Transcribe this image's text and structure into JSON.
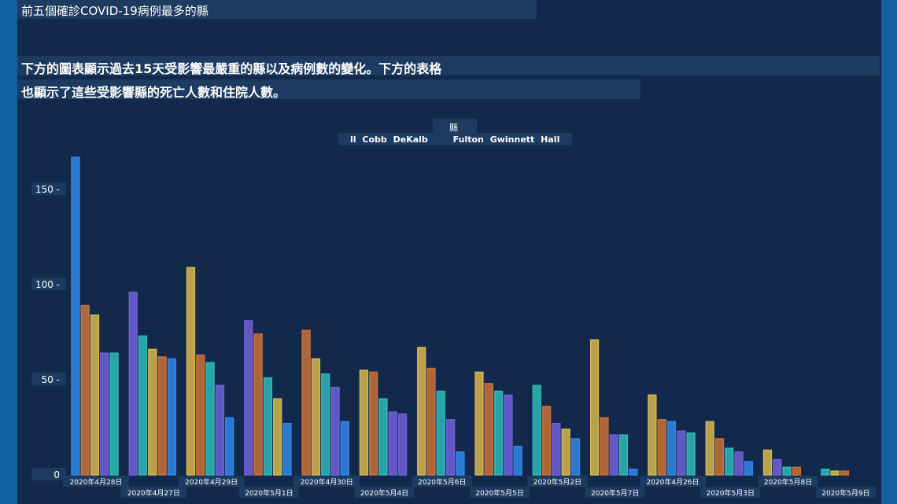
{
  "header": {
    "title": "前五個確診COVID-19病例最多的縣",
    "description_line1": "下方的圖表顯示過去15天受影響最嚴重的縣以及病例數的變化。下方的表格",
    "description_line2": "也顯示了這些受影響縣的死亡人數和住院人數。"
  },
  "legend": {
    "title": "縣",
    "items": [
      "ll",
      "Cobb",
      "DeKalb",
      "Fulton",
      "Gwinnett",
      "Hall"
    ]
  },
  "colors": {
    "bar_palette": [
      "#2f86e8",
      "#c9703a",
      "#d6b64e",
      "#7060d8",
      "#2fb8b8"
    ],
    "background": "#13294b"
  },
  "chart_data": {
    "type": "bar",
    "title": "",
    "xlabel": "",
    "ylabel": "",
    "ylim": [
      0,
      170
    ],
    "yticks": [
      0,
      50,
      100,
      150
    ],
    "ytick_labels": [
      "0",
      "50",
      "100",
      "150"
    ],
    "grid": false,
    "legend_position": "top-center",
    "categories": [
      "2020年4月28日",
      "2020年4月27日",
      "2020年4月29日",
      "2020年5月1日",
      "2020年4月30日",
      "2020年5月4日",
      "2020年5月6日",
      "2020年5月5日",
      "2020年5月2日",
      "2020年5月7日",
      "2020年4月26日",
      "2020年5月3日",
      "2020年5月8日",
      "2020年5月9日"
    ],
    "groups": [
      {
        "bars": [
          {
            "v": 167,
            "c": 0
          },
          {
            "v": 89,
            "c": 1
          },
          {
            "v": 84,
            "c": 2
          },
          {
            "v": 64,
            "c": 3
          },
          {
            "v": 64,
            "c": 4
          }
        ]
      },
      {
        "bars": [
          {
            "v": 96,
            "c": 3
          },
          {
            "v": 73,
            "c": 4
          },
          {
            "v": 66,
            "c": 2
          },
          {
            "v": 62,
            "c": 1
          },
          {
            "v": 61,
            "c": 0
          }
        ]
      },
      {
        "bars": [
          {
            "v": 109,
            "c": 2
          },
          {
            "v": 63,
            "c": 1
          },
          {
            "v": 59,
            "c": 4
          },
          {
            "v": 47,
            "c": 3
          },
          {
            "v": 30,
            "c": 0
          }
        ]
      },
      {
        "bars": [
          {
            "v": 81,
            "c": 3
          },
          {
            "v": 74,
            "c": 1
          },
          {
            "v": 51,
            "c": 4
          },
          {
            "v": 40,
            "c": 2
          },
          {
            "v": 27,
            "c": 0
          }
        ]
      },
      {
        "bars": [
          {
            "v": 76,
            "c": 1
          },
          {
            "v": 61,
            "c": 2
          },
          {
            "v": 53,
            "c": 4
          },
          {
            "v": 46,
            "c": 3
          },
          {
            "v": 28,
            "c": 0
          }
        ]
      },
      {
        "bars": [
          {
            "v": 55,
            "c": 2
          },
          {
            "v": 54,
            "c": 1
          },
          {
            "v": 40,
            "c": 4
          },
          {
            "v": 33,
            "c": 3
          },
          {
            "v": 32,
            "c": 3
          }
        ]
      },
      {
        "bars": [
          {
            "v": 67,
            "c": 2
          },
          {
            "v": 56,
            "c": 1
          },
          {
            "v": 44,
            "c": 4
          },
          {
            "v": 29,
            "c": 3
          },
          {
            "v": 12,
            "c": 0
          }
        ]
      },
      {
        "bars": [
          {
            "v": 54,
            "c": 2
          },
          {
            "v": 48,
            "c": 1
          },
          {
            "v": 44,
            "c": 4
          },
          {
            "v": 42,
            "c": 3
          },
          {
            "v": 15,
            "c": 0
          }
        ]
      },
      {
        "bars": [
          {
            "v": 47,
            "c": 4
          },
          {
            "v": 36,
            "c": 1
          },
          {
            "v": 27,
            "c": 3
          },
          {
            "v": 24,
            "c": 2
          },
          {
            "v": 19,
            "c": 0
          }
        ]
      },
      {
        "bars": [
          {
            "v": 71,
            "c": 2
          },
          {
            "v": 30,
            "c": 1
          },
          {
            "v": 21,
            "c": 3
          },
          {
            "v": 21,
            "c": 4
          },
          {
            "v": 3,
            "c": 0
          }
        ]
      },
      {
        "bars": [
          {
            "v": 42,
            "c": 2
          },
          {
            "v": 29,
            "c": 1
          },
          {
            "v": 28,
            "c": 0
          },
          {
            "v": 23,
            "c": 3
          },
          {
            "v": 22,
            "c": 4
          }
        ]
      },
      {
        "bars": [
          {
            "v": 28,
            "c": 2
          },
          {
            "v": 19,
            "c": 1
          },
          {
            "v": 14,
            "c": 4
          },
          {
            "v": 12,
            "c": 3
          },
          {
            "v": 7,
            "c": 0
          }
        ]
      },
      {
        "bars": [
          {
            "v": 13,
            "c": 2
          },
          {
            "v": 8,
            "c": 3
          },
          {
            "v": 4,
            "c": 4
          },
          {
            "v": 4,
            "c": 1
          }
        ]
      },
      {
        "bars": [
          {
            "v": 3,
            "c": 4
          },
          {
            "v": 2,
            "c": 2
          },
          {
            "v": 2,
            "c": 1
          }
        ]
      }
    ]
  }
}
